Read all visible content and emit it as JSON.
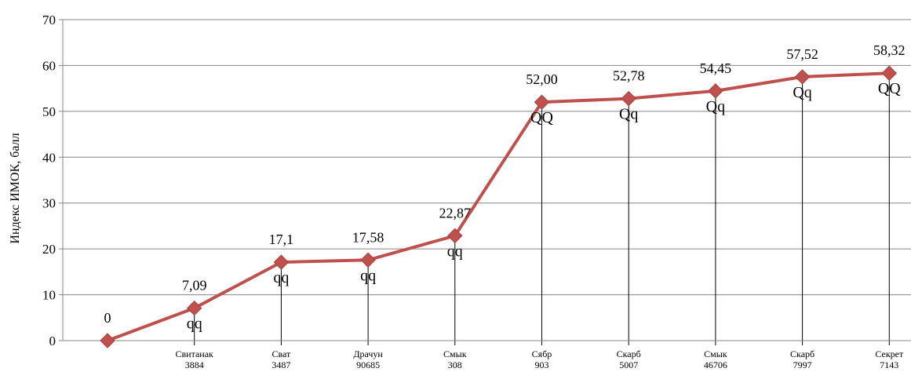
{
  "chart_data": {
    "type": "line",
    "title": "",
    "xlabel": "",
    "ylabel": "Индекс ИМОК, балл",
    "ylim": [
      0,
      70
    ],
    "y_ticks": [
      0,
      10,
      20,
      30,
      40,
      50,
      60,
      70
    ],
    "grid": "horizontal",
    "legend": "none",
    "categories": [
      {
        "line1": "",
        "line2": ""
      },
      {
        "line1": "Свитанак",
        "line2": "3884"
      },
      {
        "line1": "Сват",
        "line2": "3487"
      },
      {
        "line1": "Драчун",
        "line2": "90685"
      },
      {
        "line1": "Смык",
        "line2": "308"
      },
      {
        "line1": "Сябр",
        "line2": "903"
      },
      {
        "line1": "Скарб",
        "line2": "5007"
      },
      {
        "line1": "Смык",
        "line2": "46706"
      },
      {
        "line1": "Скарб",
        "line2": "7997"
      },
      {
        "line1": "Секрет",
        "line2": "7143"
      }
    ],
    "series": [
      {
        "values": [
          0,
          7.09,
          17.1,
          17.58,
          22.87,
          52.0,
          52.78,
          54.45,
          57.52,
          58.32
        ],
        "data_labels": [
          "0",
          "7,09",
          "17,1",
          "17,58",
          "22,87",
          "52,00",
          "52,78",
          "54,45",
          "57,52",
          "58,32"
        ],
        "group_labels": [
          "",
          "qq",
          "qq",
          "qq",
          "qq",
          "QQ",
          "Qq",
          "Qq",
          "Qq",
          "QQ"
        ]
      }
    ],
    "line_color": "#c0504d",
    "marker": "diamond-icon"
  }
}
